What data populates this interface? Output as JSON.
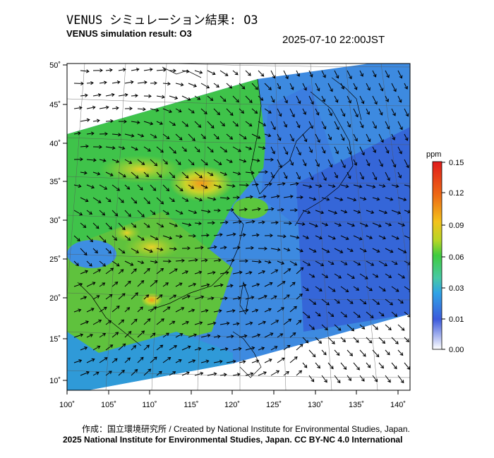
{
  "header": {
    "title_jp": "VENUS シミュレーション結果: O3",
    "title_en": "VENUS simulation result: O3",
    "timestamp": "2025-07-10 22:00JST"
  },
  "map": {
    "lat_ticks": [
      "50˚",
      "45˚",
      "40˚",
      "35˚",
      "30˚",
      "25˚",
      "20˚",
      "15˚",
      "10˚"
    ],
    "lon_ticks": [
      "100˚",
      "105˚",
      "110˚",
      "115˚",
      "120˚",
      "125˚",
      "130˚",
      "135˚",
      "140˚"
    ],
    "lon_range": [
      100,
      141
    ],
    "lat_range": [
      9,
      50
    ]
  },
  "colorbar": {
    "unit": "ppm",
    "ticks": [
      "0.15",
      "0.12",
      "0.09",
      "0.06",
      "0.03",
      "0.01",
      "0.00"
    ],
    "colors": [
      "#ffffff",
      "#3c5adc",
      "#2fa3e6",
      "#48c9a5",
      "#3fcc3f",
      "#b6d626",
      "#f3c21b",
      "#ee6a14",
      "#e01a1a"
    ]
  },
  "footer": {
    "credit_jp": "作成：国立環境研究所 / Created by National Institute for Environmental Studies, Japan.",
    "copyright": "2025 National Institute for Environmental Studies, Japan. CC BY-NC 4.0 International"
  }
}
